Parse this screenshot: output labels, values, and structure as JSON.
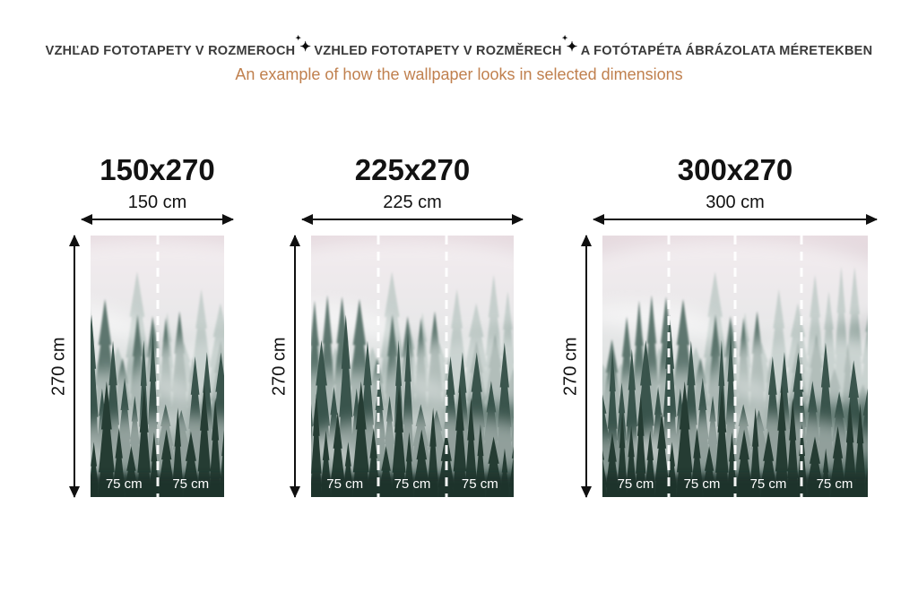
{
  "header": {
    "title_parts": [
      "VZHĽAD FOTOTAPETY V ROZMEROCH",
      "VZHLED FOTOTAPETY V ROZMĚRECH",
      "A FOTÓTAPÉTA ÁBRÁZOLATA MÉRETEKBEN"
    ],
    "separator": "✦",
    "subtitle": "An example of how the wallpaper looks in selected dimensions"
  },
  "panels": [
    {
      "title": "150x270",
      "width_label": "150 cm",
      "height_label": "270 cm",
      "width_cm": 150,
      "height_cm": 270,
      "segment_width_cm": 75,
      "segments": [
        "75 cm",
        "75 cm"
      ]
    },
    {
      "title": "225x270",
      "width_label": "225 cm",
      "height_label": "270 cm",
      "width_cm": 225,
      "height_cm": 270,
      "segment_width_cm": 75,
      "segments": [
        "75 cm",
        "75 cm",
        "75 cm"
      ]
    },
    {
      "title": "300x270",
      "width_label": "300 cm",
      "height_label": "270 cm",
      "width_cm": 300,
      "height_cm": 270,
      "segment_width_cm": 75,
      "segments": [
        "75 cm",
        "75 cm",
        "75 cm",
        "75 cm"
      ]
    }
  ],
  "colors": {
    "title_text": "#3a3a3a",
    "subtitle_text": "#c0804e",
    "arrow": "#101010",
    "segment_label": "#ffffff",
    "sky_top": "#e7dbe0"
  },
  "image_description": "misty-pine-forest-wallpaper"
}
